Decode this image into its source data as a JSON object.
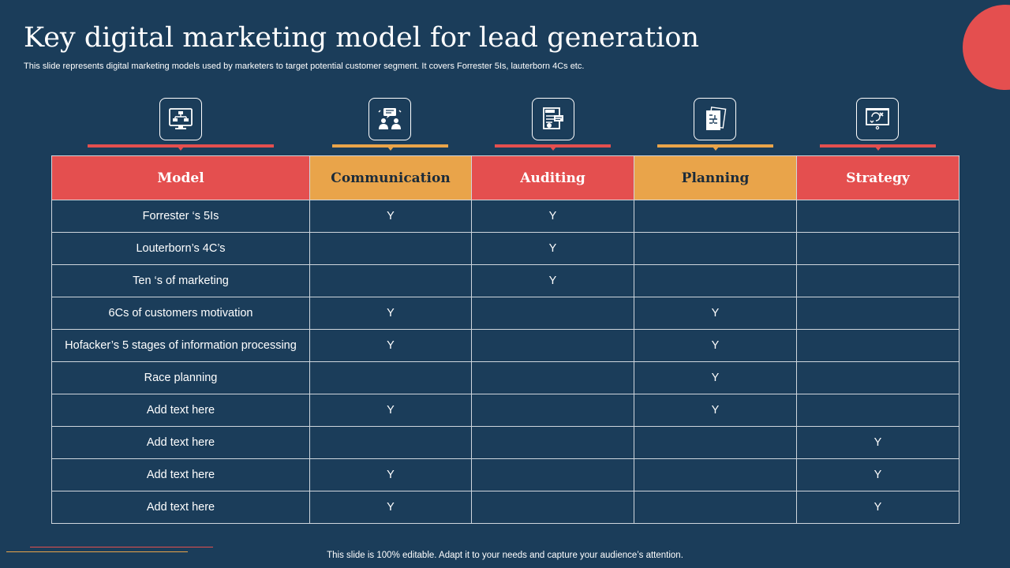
{
  "title": "Key digital marketing model for lead generation",
  "subtitle": "This slide represents digital marketing models used by marketers to target potential customer segment. It covers Forrester 5Is, lauterborn 4Cs etc.",
  "icons": [
    "flowchart-monitor-icon",
    "team-discussion-icon",
    "audit-report-icon",
    "planning-document-icon",
    "strategy-board-icon"
  ],
  "colors": {
    "background": "#1b3d5a",
    "red": "#e44f4f",
    "orange": "#e9a44a"
  },
  "table": {
    "headers": [
      "Model",
      "Communication",
      "Auditing",
      "Planning",
      "Strategy"
    ],
    "rows": [
      [
        "Forrester ‘s 5Is",
        "Y",
        "Y",
        "",
        ""
      ],
      [
        "Louterborn’s  4C’s",
        "",
        "Y",
        "",
        ""
      ],
      [
        "Ten ‘s of marketing",
        "",
        "Y",
        "",
        ""
      ],
      [
        "6Cs  of customers motivation",
        "Y",
        "",
        "Y",
        ""
      ],
      [
        "Hofacker’s 5 stages of information  processing",
        "Y",
        "",
        "Y",
        ""
      ],
      [
        "Race planning",
        "",
        "",
        "Y",
        ""
      ],
      [
        "Add text here",
        "Y",
        "",
        "Y",
        ""
      ],
      [
        "Add text here",
        "",
        "",
        "",
        "Y"
      ],
      [
        "Add text here",
        "Y",
        "",
        "",
        "Y"
      ],
      [
        "Add text here",
        "Y",
        "",
        "",
        "Y"
      ]
    ]
  },
  "footer": "This slide is 100% editable. Adapt it to your needs and capture your audience’s attention."
}
